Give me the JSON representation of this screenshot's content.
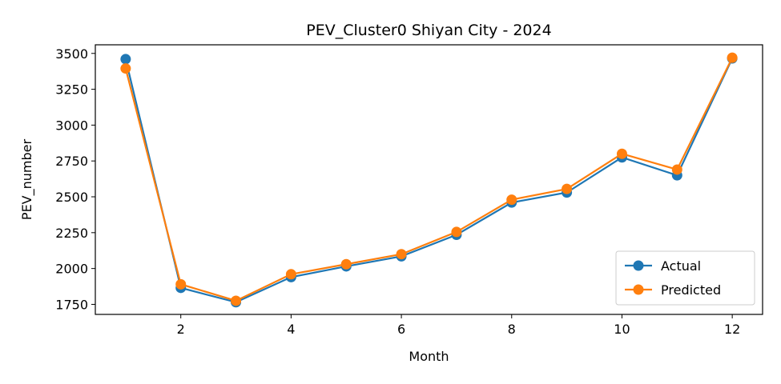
{
  "chart_data": {
    "type": "line",
    "title": "PEV_Cluster0 Shiyan City - 2024",
    "xlabel": "Month",
    "ylabel": "PEV_number",
    "x": [
      1,
      2,
      3,
      4,
      5,
      6,
      7,
      8,
      9,
      10,
      11,
      12
    ],
    "xlim": [
      0.45,
      12.55
    ],
    "ylim": [
      1680,
      3560
    ],
    "xticks": [
      2,
      4,
      6,
      8,
      10,
      12
    ],
    "yticks": [
      1750,
      2000,
      2250,
      2500,
      2750,
      3000,
      3250,
      3500
    ],
    "grid": false,
    "legend_position": "bottom-right",
    "series": [
      {
        "name": "Actual",
        "color": "#1f77b4",
        "marker": "circle",
        "values": [
          3460,
          1865,
          1765,
          1940,
          2015,
          2085,
          2235,
          2460,
          2530,
          2775,
          2650,
          3465
        ]
      },
      {
        "name": "Predicted",
        "color": "#ff7f0e",
        "marker": "circle",
        "values": [
          3395,
          1890,
          1775,
          1960,
          2030,
          2100,
          2255,
          2480,
          2555,
          2800,
          2690,
          3470
        ]
      }
    ]
  }
}
